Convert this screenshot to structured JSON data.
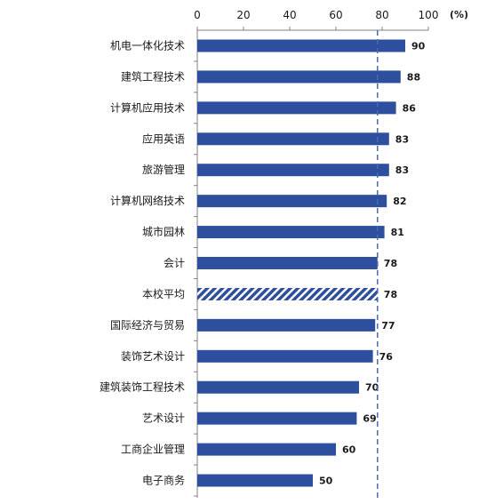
{
  "chart_data": {
    "type": "bar",
    "orientation": "horizontal",
    "categories": [
      "机电一体化技术",
      "建筑工程技术",
      "计算机应用技术",
      "应用英语",
      "旅游管理",
      "计算机网络技术",
      "城市园林",
      "会计",
      "本校平均",
      "国际经济与贸易",
      "装饰艺术设计",
      "建筑装饰工程技术",
      "艺术设计",
      "工商企业管理",
      "电子商务"
    ],
    "values": [
      90,
      88,
      86,
      83,
      83,
      82,
      81,
      78,
      78,
      77,
      76,
      70,
      69,
      60,
      50
    ],
    "data_labels": [
      "90",
      "88",
      "86",
      "83",
      "83",
      "82",
      "81",
      "78",
      "78",
      "77",
      "76",
      "70",
      "69",
      "60",
      "50"
    ],
    "highlight": {
      "category": "本校平均",
      "pattern": "diagonal-hatch"
    },
    "reference_line": {
      "value": 78,
      "style": "dashed"
    },
    "xlim": [
      0,
      100
    ],
    "x_ticks": [
      0,
      20,
      40,
      60,
      80,
      100
    ],
    "x_tick_labels": [
      "0",
      "20",
      "40",
      "60",
      "80",
      "100"
    ],
    "x_axis_position": "top",
    "x_unit": "(%)",
    "grid": false,
    "legend": "none",
    "title": "",
    "xlabel": "",
    "ylabel": ""
  },
  "colors": {
    "bar": "#2e4f9e",
    "hatch_stripe": "#ffffff",
    "reference_line": "#4a6aae",
    "axis": "#808080",
    "text": "#1a1a1a"
  }
}
